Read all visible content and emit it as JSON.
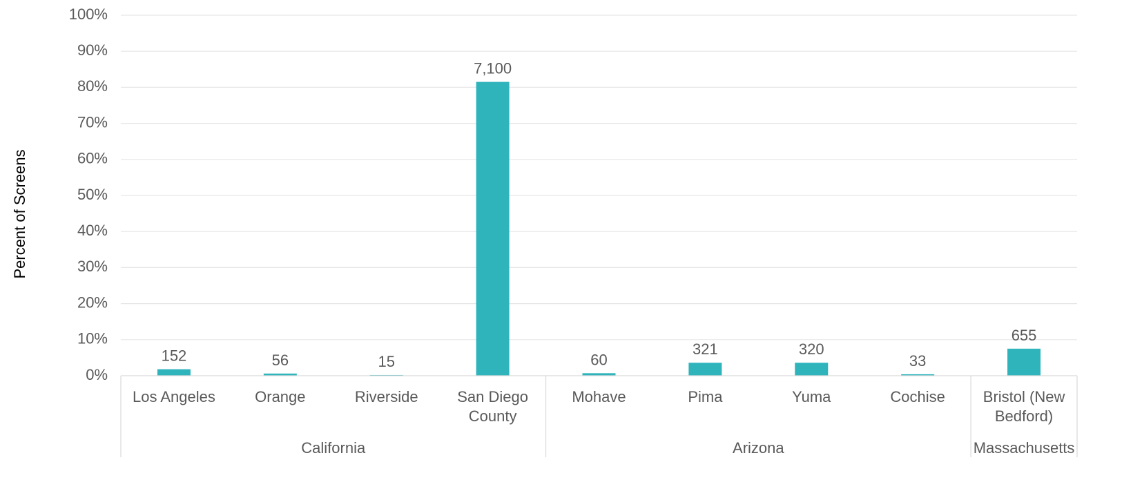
{
  "chart_data": {
    "type": "bar",
    "title": "",
    "ylabel": "Percent of Screens",
    "xlabel": "",
    "ylim": [
      0,
      100
    ],
    "yticks": [
      0,
      10,
      20,
      30,
      40,
      50,
      60,
      70,
      80,
      90,
      100
    ],
    "ytick_format": "percent",
    "grid": true,
    "bar_color": "#2FB4BC",
    "categories": [
      "Los Angeles",
      "Orange",
      "Riverside",
      "San Diego County",
      "Mohave",
      "Pima",
      "Yuma",
      "Cochise",
      "Bristol (New Bedford)"
    ],
    "category_lines": [
      [
        "Los Angeles"
      ],
      [
        "Orange"
      ],
      [
        "Riverside"
      ],
      [
        "San Diego",
        "County"
      ],
      [
        "Mohave"
      ],
      [
        "Pima"
      ],
      [
        "Yuma"
      ],
      [
        "Cochise"
      ],
      [
        "Bristol (New",
        "Bedford)"
      ]
    ],
    "values": [
      1.8,
      0.6,
      0.2,
      81.5,
      0.7,
      3.6,
      3.6,
      0.4,
      7.5
    ],
    "data_labels": [
      "152",
      "56",
      "15",
      "7,100",
      "60",
      "321",
      "320",
      "33",
      "655"
    ],
    "groups": [
      {
        "name": "California",
        "start": 0,
        "end": 3
      },
      {
        "name": "Arizona",
        "start": 4,
        "end": 7
      },
      {
        "name": "Massachusetts",
        "start": 8,
        "end": 8
      }
    ]
  }
}
